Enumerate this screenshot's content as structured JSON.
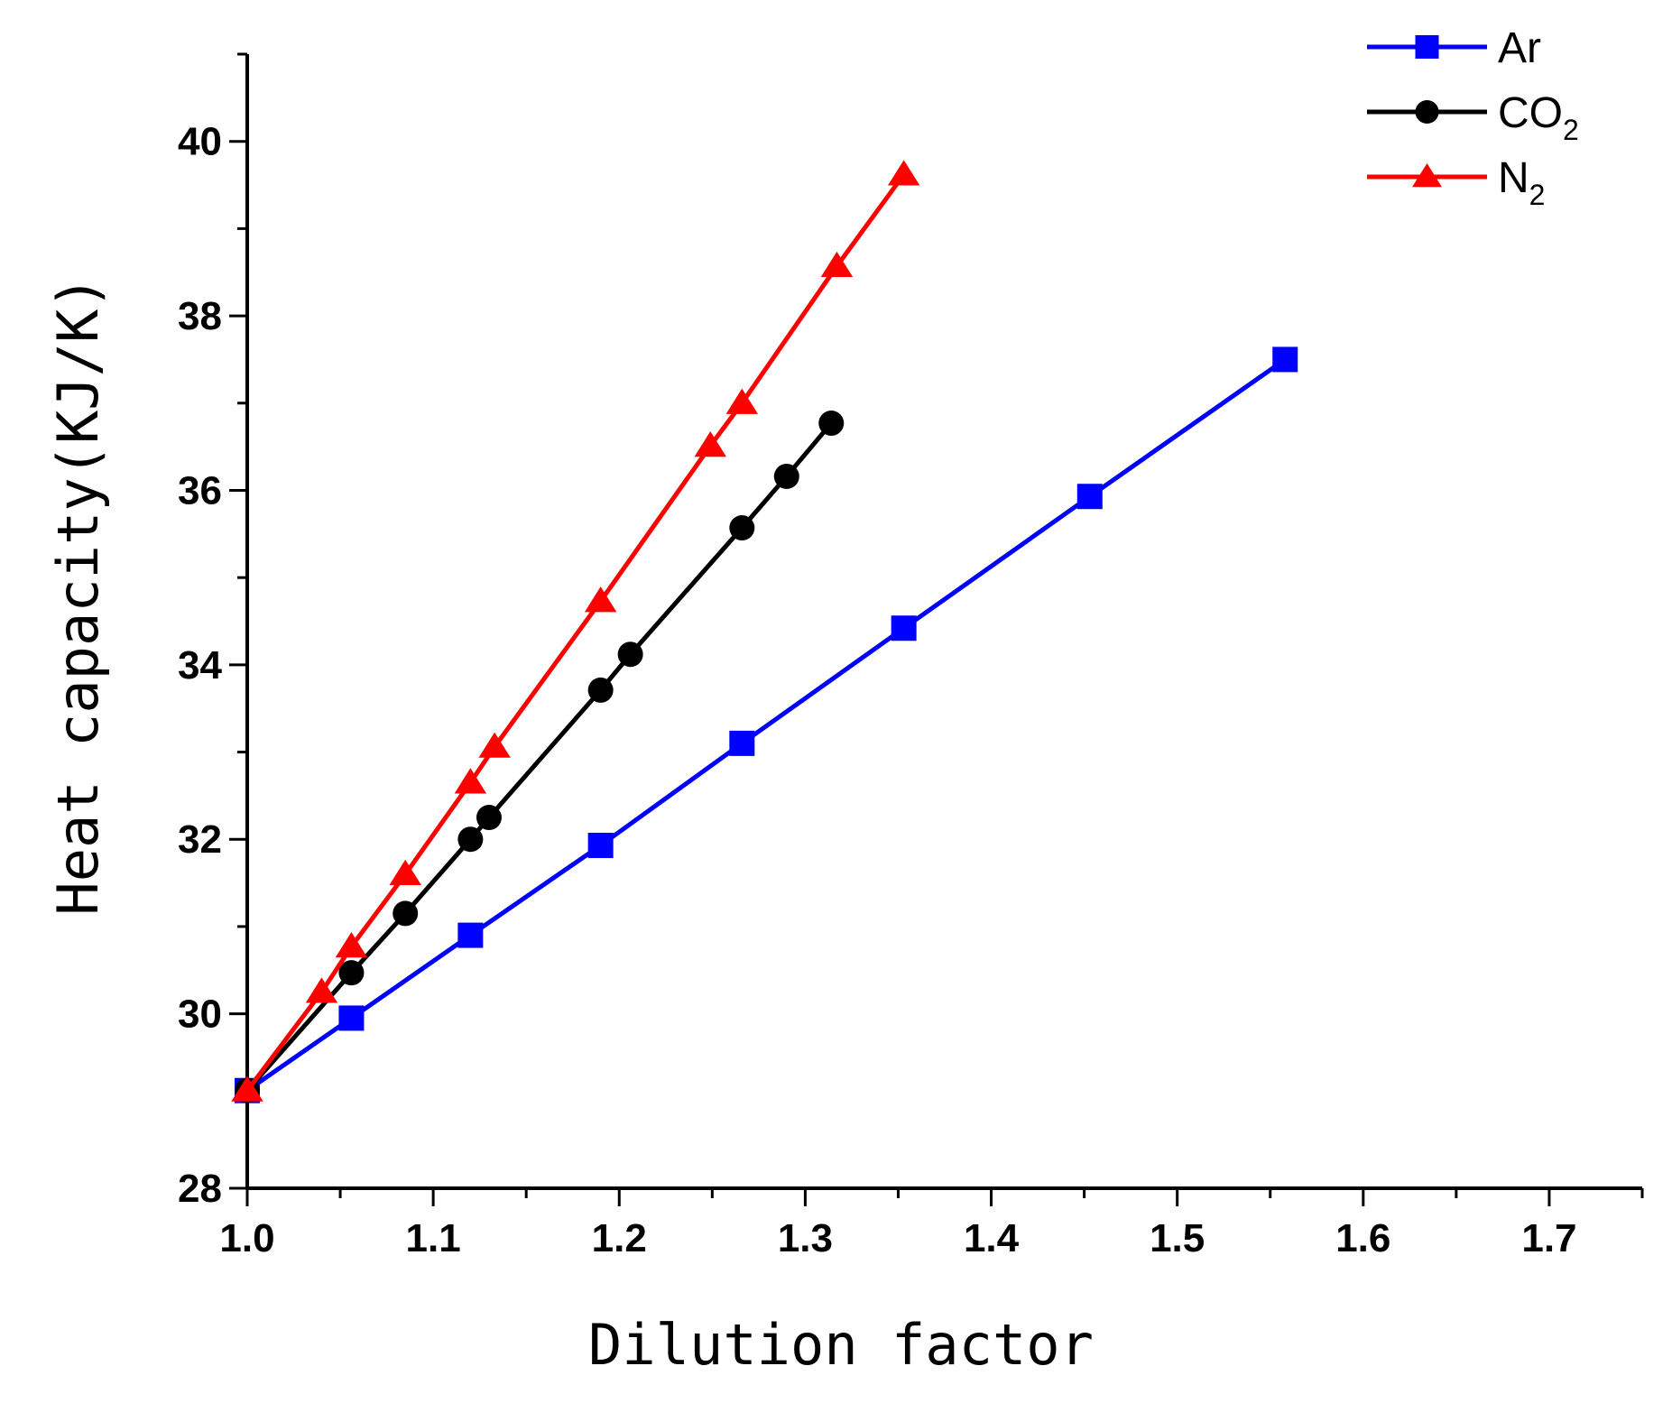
{
  "chart_data": {
    "type": "line",
    "title": "",
    "xlabel": "Dilution factor",
    "ylabel": "Heat capacity(KJ/K)",
    "xlim": [
      1.0,
      1.75
    ],
    "ylim": [
      28,
      41
    ],
    "x_ticks": [
      1.0,
      1.1,
      1.2,
      1.3,
      1.4,
      1.5,
      1.6,
      1.7
    ],
    "x_tick_labels": [
      "1.0",
      "1.1",
      "1.2",
      "1.3",
      "1.4",
      "1.5",
      "1.6",
      "1.7"
    ],
    "y_ticks": [
      28,
      30,
      32,
      34,
      36,
      38,
      40
    ],
    "y_tick_labels": [
      "28",
      "30",
      "32",
      "34",
      "36",
      "38",
      "40"
    ],
    "grid": false,
    "legend_position": "top-right",
    "series": [
      {
        "name": "Ar",
        "label_main": "Ar",
        "label_sub": "",
        "color": "#0000ff",
        "marker": "square",
        "x": [
          1.0,
          1.056,
          1.12,
          1.19,
          1.266,
          1.353,
          1.453,
          1.558
        ],
        "y": [
          29.12,
          29.95,
          30.9,
          31.93,
          33.1,
          34.42,
          35.93,
          37.5
        ]
      },
      {
        "name": "CO2",
        "label_main": "CO",
        "label_sub": "2",
        "color": "#000000",
        "marker": "circle",
        "x": [
          1.0,
          1.056,
          1.085,
          1.12,
          1.13,
          1.19,
          1.206,
          1.266,
          1.29,
          1.314
        ],
        "y": [
          29.12,
          30.47,
          31.15,
          32.0,
          32.25,
          33.71,
          34.12,
          35.57,
          36.16,
          36.77
        ]
      },
      {
        "name": "N2",
        "label_main": "N",
        "label_sub": "2",
        "color": "#ff0000",
        "marker": "triangle",
        "x": [
          1.0,
          1.04,
          1.056,
          1.085,
          1.12,
          1.133,
          1.19,
          1.249,
          1.266,
          1.317,
          1.353
        ],
        "y": [
          29.12,
          30.25,
          30.77,
          31.6,
          32.65,
          33.06,
          34.73,
          36.51,
          37.0,
          38.57,
          39.62
        ]
      }
    ]
  }
}
